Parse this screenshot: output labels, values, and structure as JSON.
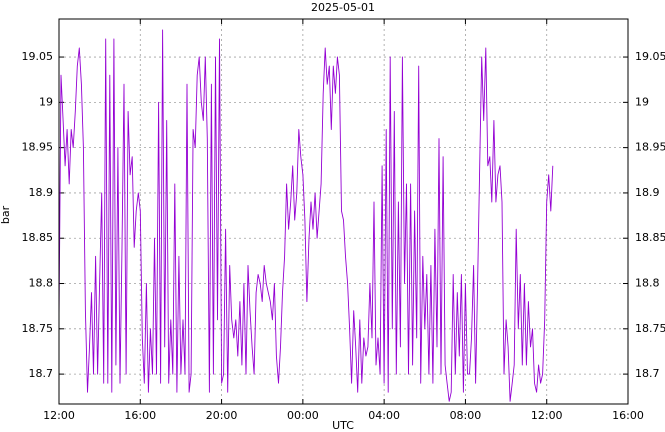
{
  "chart_data": {
    "type": "line",
    "title": "2025-05-01",
    "xlabel": "UTC",
    "ylabel": "bar",
    "grid": true,
    "x_unit": "hours since 12:00",
    "xlim": [
      0,
      28
    ],
    "ylim": [
      18.667,
      19.092
    ],
    "x_ticks": [
      {
        "v": 0,
        "label": "12:00"
      },
      {
        "v": 4,
        "label": "16:00"
      },
      {
        "v": 8,
        "label": "20:00"
      },
      {
        "v": 12,
        "label": "00:00"
      },
      {
        "v": 16,
        "label": "04:00"
      },
      {
        "v": 20,
        "label": "08:00"
      },
      {
        "v": 24,
        "label": "12:00"
      },
      {
        "v": 28,
        "label": "16:00"
      }
    ],
    "y_ticks": [
      {
        "v": 18.7,
        "label": "18.7"
      },
      {
        "v": 18.75,
        "label": "18.75"
      },
      {
        "v": 18.8,
        "label": "18.8"
      },
      {
        "v": 18.85,
        "label": "18.85"
      },
      {
        "v": 18.9,
        "label": "18.9"
      },
      {
        "v": 18.95,
        "label": "18.95"
      },
      {
        "v": 19.0,
        "label": "19"
      },
      {
        "v": 19.05,
        "label": "19.05"
      }
    ],
    "series": [
      {
        "color": "#9400d3",
        "x": [
          0.0,
          0.1,
          0.2,
          0.3,
          0.4,
          0.5,
          0.6,
          0.7,
          0.8,
          0.9,
          1.0,
          1.1,
          1.2,
          1.3,
          1.4,
          1.5,
          1.6,
          1.7,
          1.8,
          1.9,
          2.0,
          2.1,
          2.2,
          2.3,
          2.4,
          2.5,
          2.6,
          2.7,
          2.8,
          2.9,
          3.0,
          3.1,
          3.2,
          3.3,
          3.4,
          3.5,
          3.6,
          3.7,
          3.8,
          3.9,
          4.0,
          4.1,
          4.2,
          4.3,
          4.4,
          4.5,
          4.6,
          4.7,
          4.8,
          4.9,
          5.0,
          5.1,
          5.2,
          5.3,
          5.4,
          5.5,
          5.6,
          5.7,
          5.8,
          5.9,
          6.0,
          6.1,
          6.2,
          6.3,
          6.4,
          6.5,
          6.6,
          6.7,
          6.8,
          6.9,
          7.0,
          7.1,
          7.2,
          7.3,
          7.4,
          7.5,
          7.6,
          7.7,
          7.8,
          7.9,
          8.0,
          8.1,
          8.2,
          8.3,
          8.4,
          8.5,
          8.6,
          8.7,
          8.8,
          8.9,
          9.0,
          9.1,
          9.2,
          9.3,
          9.4,
          9.5,
          9.6,
          9.7,
          9.8,
          9.9,
          10.0,
          10.1,
          10.2,
          10.3,
          10.4,
          10.5,
          10.6,
          10.7,
          10.8,
          10.9,
          11.0,
          11.1,
          11.2,
          11.3,
          11.4,
          11.5,
          11.6,
          11.7,
          11.8,
          11.9,
          12.0,
          12.1,
          12.2,
          12.3,
          12.4,
          12.5,
          12.6,
          12.7,
          12.8,
          12.9,
          13.0,
          13.1,
          13.2,
          13.3,
          13.4,
          13.5,
          13.6,
          13.7,
          13.8,
          13.9,
          14.0,
          14.1,
          14.2,
          14.3,
          14.4,
          14.5,
          14.6,
          14.7,
          14.8,
          14.9,
          15.0,
          15.1,
          15.2,
          15.3,
          15.4,
          15.5,
          15.6,
          15.7,
          15.8,
          15.9,
          16.0,
          16.1,
          16.2,
          16.3,
          16.4,
          16.5,
          16.6,
          16.7,
          16.8,
          16.9,
          17.0,
          17.1,
          17.2,
          17.3,
          17.4,
          17.5,
          17.6,
          17.7,
          17.8,
          17.9,
          18.0,
          18.1,
          18.2,
          18.3,
          18.4,
          18.5,
          18.6,
          18.7,
          18.8,
          18.9,
          19.0,
          19.1,
          19.2,
          19.3,
          19.4,
          19.5,
          19.6,
          19.7,
          19.8,
          19.9,
          20.0,
          20.1,
          20.2,
          20.3,
          20.4,
          20.5,
          20.6,
          20.7,
          20.8,
          20.9,
          21.0,
          21.1,
          21.2,
          21.3,
          21.4,
          21.5,
          21.6,
          21.7,
          21.8,
          21.9,
          22.0,
          22.1,
          22.2,
          22.3,
          22.4,
          22.5,
          22.6,
          22.7,
          22.8,
          22.9,
          23.0,
          23.1,
          23.2,
          23.3,
          23.4,
          23.5,
          23.6,
          23.7,
          23.8,
          23.9,
          24.0,
          24.1,
          24.2,
          24.3
        ],
        "y": [
          18.76,
          19.03,
          18.98,
          18.93,
          18.97,
          18.91,
          18.97,
          18.95,
          18.99,
          19.04,
          19.06,
          19.02,
          18.95,
          18.77,
          18.68,
          18.73,
          18.79,
          18.7,
          18.83,
          18.7,
          18.8,
          18.9,
          18.69,
          19.07,
          18.69,
          19.03,
          18.68,
          19.07,
          18.71,
          18.95,
          18.69,
          18.84,
          19.02,
          18.7,
          18.99,
          18.92,
          18.94,
          18.84,
          18.88,
          18.9,
          18.88,
          18.74,
          18.69,
          18.8,
          18.68,
          18.75,
          18.7,
          18.85,
          18.7,
          19.0,
          18.69,
          19.08,
          18.73,
          18.98,
          18.69,
          18.76,
          18.7,
          18.91,
          18.68,
          18.83,
          18.7,
          18.76,
          18.7,
          19.02,
          18.68,
          18.7,
          18.97,
          18.95,
          19.03,
          19.05,
          19.0,
          18.98,
          19.05,
          18.96,
          18.68,
          19.02,
          18.7,
          19.05,
          18.76,
          19.07,
          18.69,
          18.7,
          18.86,
          18.68,
          18.82,
          18.76,
          18.74,
          18.76,
          18.72,
          18.78,
          18.71,
          18.8,
          18.7,
          18.82,
          18.77,
          18.73,
          18.7,
          18.79,
          18.81,
          18.8,
          18.78,
          18.82,
          18.8,
          18.79,
          18.78,
          18.76,
          18.8,
          18.72,
          18.69,
          18.73,
          18.79,
          18.83,
          18.91,
          18.86,
          18.89,
          18.93,
          18.87,
          18.9,
          18.97,
          18.94,
          18.92,
          18.87,
          18.78,
          18.85,
          18.89,
          18.86,
          18.9,
          18.85,
          18.88,
          18.91,
          19.01,
          19.06,
          19.02,
          19.04,
          18.97,
          19.04,
          19.01,
          19.05,
          19.03,
          18.88,
          18.87,
          18.83,
          18.8,
          18.75,
          18.69,
          18.77,
          18.73,
          18.68,
          18.76,
          18.69,
          18.74,
          18.72,
          18.73,
          18.8,
          18.74,
          18.89,
          18.71,
          18.74,
          18.7,
          18.93,
          18.69,
          18.97,
          18.68,
          19.05,
          18.75,
          18.99,
          18.7,
          18.89,
          18.73,
          19.05,
          18.8,
          18.91,
          18.7,
          18.91,
          18.71,
          18.88,
          18.74,
          19.04,
          18.69,
          18.83,
          18.75,
          18.81,
          18.7,
          18.82,
          18.69,
          18.86,
          18.73,
          18.96,
          18.7,
          18.94,
          18.71,
          18.69,
          18.67,
          18.68,
          18.81,
          18.7,
          18.79,
          18.72,
          18.81,
          18.68,
          18.8,
          18.7,
          18.7,
          18.74,
          18.82,
          18.69,
          18.8,
          18.93,
          19.05,
          18.98,
          19.06,
          18.93,
          18.94,
          18.89,
          18.98,
          18.89,
          18.92,
          18.93,
          18.89,
          18.7,
          18.76,
          18.73,
          18.67,
          18.69,
          18.71,
          18.86,
          18.75,
          18.81,
          18.71,
          18.8,
          18.71,
          18.78,
          18.73,
          18.75,
          18.69,
          18.68,
          18.71,
          18.69,
          18.7,
          18.76,
          18.89,
          18.92,
          18.88,
          18.93
        ]
      }
    ]
  }
}
